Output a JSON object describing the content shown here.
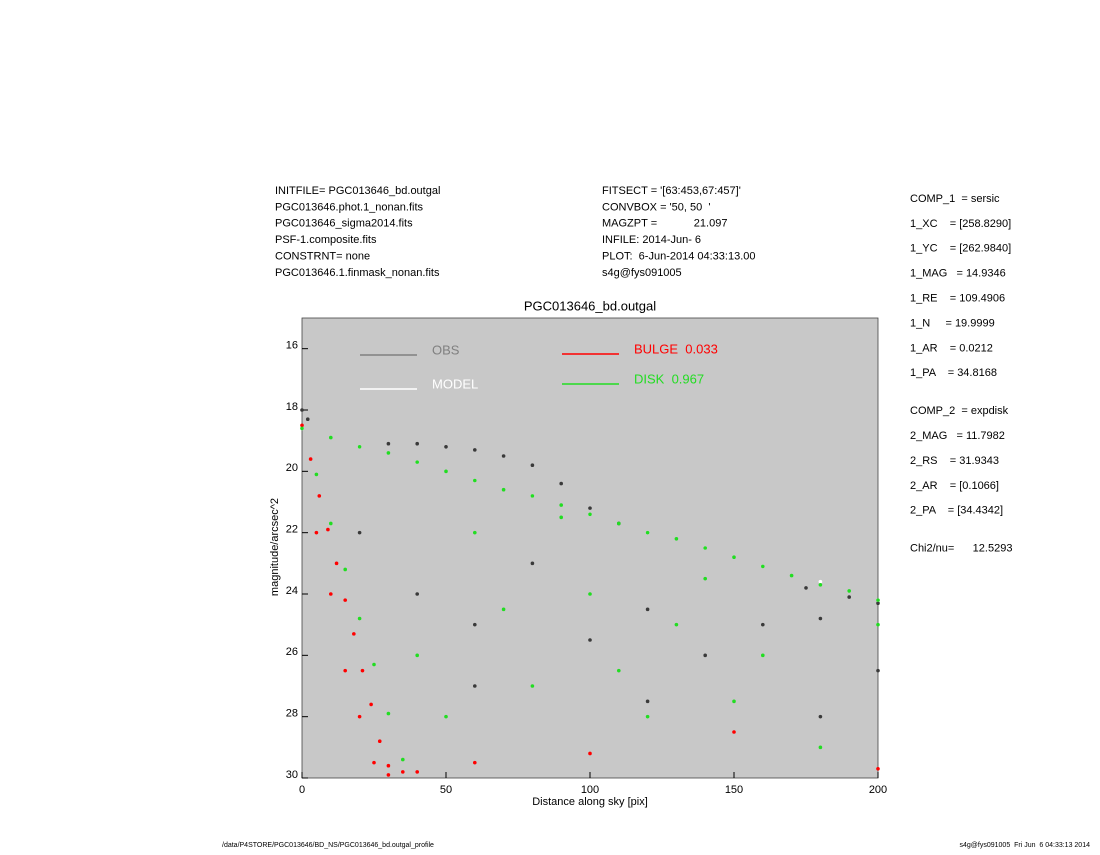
{
  "header": {
    "left": [
      "INITFILE= PGC013646_bd.outgal",
      "PGC013646.phot.1_nonan.fits",
      "PGC013646_sigma2014.fits",
      "PSF-1.composite.fits",
      "CONSTRNT= none",
      "PGC013646.1.finmask_nonan.fits"
    ],
    "middle": [
      "FITSECT = '[63:453,67:457]'",
      "CONVBOX = '50, 50  '",
      "MAGZPT =            21.097",
      "INFILE: 2014-Jun- 6",
      "PLOT:  6-Jun-2014 04:33:13.00",
      "s4g@fys091005"
    ],
    "right": [
      "COMP_1  = sersic",
      "1_XC    = [258.8290]",
      "1_YC    = [262.9840]",
      "1_MAG   = 14.9346",
      "1_RE    = 109.4906",
      "1_N     = 19.9999",
      "1_AR    = 0.0212",
      "1_PA    = 34.8168",
      "COMP_2  = expdisk",
      "2_MAG   = 11.7982",
      "2_RS    = 31.9343",
      "2_AR    = [0.1066]",
      "2_PA    = [34.4342]",
      "Chi2/nu=      12.5293"
    ]
  },
  "footer": {
    "left": "/data/P4STORE/PGC013646/BD_NS/PGC013646_bd.outgal_profile",
    "right": "s4g@fys091005  Fri Jun  6 04:33:13 2014"
  },
  "chart_data": {
    "type": "scatter",
    "title": "PGC013646_bd.outgal",
    "x_label": "Distance along sky [pix]",
    "y_label": "magnitude/arcsec^2",
    "xlim": [
      0,
      200
    ],
    "ylim": [
      30,
      15
    ],
    "xticks": [
      0,
      50,
      100,
      150,
      200
    ],
    "yticks": [
      16,
      18,
      20,
      22,
      24,
      26,
      28,
      30
    ],
    "background": "#c8c8c8",
    "series": [
      {
        "name": "OBS",
        "color": "#808080",
        "point_color": "#3a3a3a",
        "x": [
          0,
          2,
          30,
          40,
          50,
          60,
          70,
          80,
          90,
          100,
          110,
          175,
          190,
          200,
          20,
          40,
          60,
          80,
          100,
          120,
          140,
          160,
          180,
          200,
          60,
          120,
          180
        ],
        "values": [
          18.0,
          18.3,
          19.1,
          19.1,
          19.2,
          19.3,
          19.5,
          19.8,
          20.4,
          21.2,
          21.7,
          23.8,
          24.1,
          24.3,
          22,
          24,
          25,
          23,
          25.5,
          24.5,
          26,
          25,
          24.8,
          26.5,
          27,
          27.5,
          28
        ]
      },
      {
        "name": "MODEL",
        "color": "#ffffff",
        "point_color": "#ffffff",
        "x": [
          0,
          20,
          40,
          60,
          80,
          100,
          120,
          140,
          160,
          180,
          200
        ],
        "values": [
          18.6,
          19.2,
          19.7,
          20.3,
          20.8,
          21.4,
          22.0,
          22.5,
          23.1,
          23.6,
          24.2
        ]
      },
      {
        "name": "BULGE  0.033",
        "color": "#ff0000",
        "point_color": "#ff0000",
        "x": [
          0,
          3,
          6,
          9,
          12,
          15,
          18,
          21,
          24,
          27,
          30,
          5,
          10,
          15,
          20,
          25,
          30,
          35,
          40,
          60,
          100,
          150,
          200
        ],
        "values": [
          18.5,
          19.6,
          20.8,
          21.9,
          23,
          24.2,
          25.3,
          26.5,
          27.6,
          28.8,
          29.9,
          22,
          24,
          26.5,
          28,
          29.5,
          29.6,
          29.8,
          29.8,
          29.5,
          29.2,
          28.5,
          29.7
        ]
      },
      {
        "name": "DISK  0.967",
        "color": "#22dd22",
        "point_color": "#22dd22",
        "x": [
          0,
          10,
          20,
          30,
          40,
          50,
          60,
          70,
          80,
          90,
          100,
          110,
          120,
          130,
          140,
          150,
          160,
          170,
          180,
          190,
          200,
          5,
          10,
          15,
          20,
          25,
          30,
          35,
          40,
          60,
          80,
          100,
          120,
          140,
          160,
          180,
          200,
          50,
          70,
          90,
          110,
          130,
          150
        ],
        "values": [
          18.6,
          18.9,
          19.2,
          19.4,
          19.7,
          20.0,
          20.3,
          20.6,
          20.8,
          21.1,
          21.4,
          21.7,
          22.0,
          22.2,
          22.5,
          22.8,
          23.1,
          23.4,
          23.7,
          23.9,
          24.2,
          20.1,
          21.7,
          23.2,
          24.8,
          26.3,
          27.9,
          29.4,
          26,
          22,
          27,
          24,
          28,
          23.5,
          26,
          29,
          25,
          28,
          24.5,
          21.5,
          26.5,
          25,
          27.5
        ]
      }
    ]
  }
}
